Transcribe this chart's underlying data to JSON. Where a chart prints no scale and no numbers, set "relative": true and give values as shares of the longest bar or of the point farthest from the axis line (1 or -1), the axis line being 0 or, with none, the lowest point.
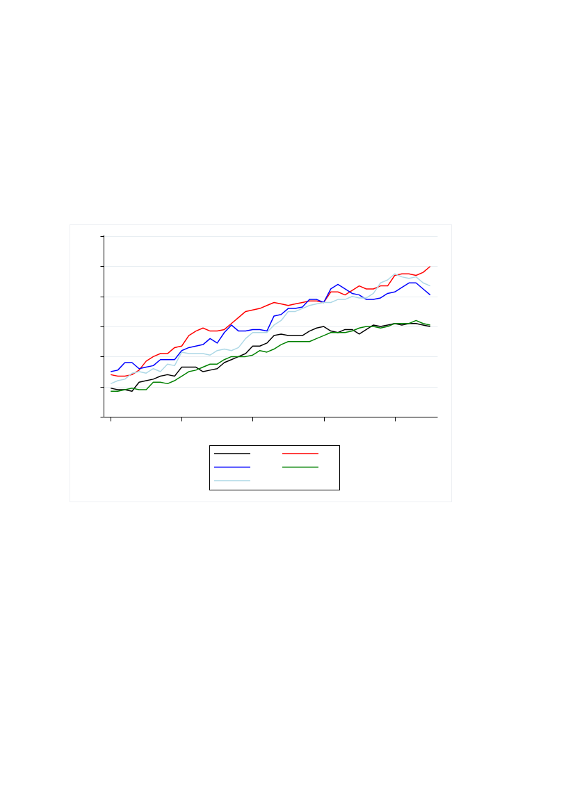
{
  "chart_data": {
    "type": "line",
    "relative": true,
    "categories": [
      null,
      null,
      null,
      null,
      null,
      null,
      null,
      null,
      null,
      null,
      null,
      null,
      null,
      null,
      null,
      null,
      null,
      null,
      null,
      null,
      null,
      null,
      null,
      null,
      null,
      null,
      null,
      null,
      null,
      null,
      null,
      null,
      null,
      null,
      null,
      null,
      null,
      null,
      null,
      null,
      null,
      null,
      null,
      null,
      null,
      null
    ],
    "series": [
      {
        "color": "#000000",
        "values": [
          0.19,
          0.18,
          0.18,
          0.17,
          0.23,
          0.24,
          0.25,
          0.27,
          0.28,
          0.27,
          0.33,
          0.33,
          0.33,
          0.3,
          0.31,
          0.32,
          0.36,
          0.38,
          0.4,
          0.42,
          0.47,
          0.47,
          0.49,
          0.54,
          0.55,
          0.54,
          0.54,
          0.54,
          0.57,
          0.59,
          0.6,
          0.57,
          0.56,
          0.58,
          0.58,
          0.55,
          0.58,
          0.61,
          0.6,
          0.61,
          0.62,
          0.61,
          0.62,
          0.62,
          0.61,
          0.6
        ]
      },
      {
        "color": "#ff0000",
        "values": [
          0.28,
          0.27,
          0.27,
          0.28,
          0.31,
          0.37,
          0.4,
          0.42,
          0.42,
          0.46,
          0.47,
          0.54,
          0.57,
          0.59,
          0.57,
          0.57,
          0.58,
          0.62,
          0.66,
          0.7,
          0.71,
          0.72,
          0.74,
          0.76,
          0.75,
          0.74,
          0.75,
          0.76,
          0.77,
          0.77,
          0.76,
          0.83,
          0.83,
          0.81,
          0.84,
          0.87,
          0.85,
          0.85,
          0.87,
          0.87,
          0.94,
          0.95,
          0.95,
          0.94,
          0.96,
          1
        ]
      },
      {
        "color": "#0000ff",
        "values": [
          0.3,
          0.31,
          0.36,
          0.36,
          0.32,
          0.33,
          0.34,
          0.38,
          0.38,
          0.38,
          0.44,
          0.46,
          0.47,
          0.48,
          0.52,
          0.49,
          0.56,
          0.61,
          0.57,
          0.57,
          0.58,
          0.58,
          0.57,
          0.67,
          0.68,
          0.72,
          0.72,
          0.73,
          0.78,
          0.78,
          0.76,
          0.85,
          0.88,
          0.85,
          0.82,
          0.81,
          0.78,
          0.78,
          0.79,
          0.82,
          0.83,
          0.86,
          0.89,
          0.89,
          0.85,
          0.81
        ]
      },
      {
        "color": "#008000",
        "values": [
          0.17,
          0.17,
          0.18,
          0.19,
          0.18,
          0.18,
          0.23,
          0.23,
          0.22,
          0.24,
          0.27,
          0.3,
          0.31,
          0.33,
          0.35,
          0.35,
          0.38,
          0.4,
          0.4,
          0.4,
          0.41,
          0.44,
          0.43,
          0.45,
          0.48,
          0.5,
          0.5,
          0.5,
          0.5,
          0.52,
          0.54,
          0.56,
          0.56,
          0.56,
          0.57,
          0.59,
          0.6,
          0.6,
          0.59,
          0.6,
          0.62,
          0.62,
          0.62,
          0.64,
          0.62,
          0.61
        ]
      },
      {
        "color": "#add8e6",
        "values": [
          0.22,
          0.24,
          0.25,
          0.29,
          0.3,
          0.29,
          0.32,
          0.3,
          0.35,
          0.34,
          0.43,
          0.42,
          0.42,
          0.42,
          0.41,
          0.44,
          0.45,
          0.44,
          0.46,
          0.52,
          0.56,
          0.56,
          0.56,
          0.61,
          0.64,
          0.7,
          0.7,
          0.72,
          0.74,
          0.75,
          0.76,
          0.76,
          0.78,
          0.78,
          0.8,
          0.79,
          0.79,
          0.82,
          0.89,
          0.91,
          0.95,
          0.93,
          0.92,
          0.93,
          0.89,
          0.87
        ]
      }
    ],
    "grid": "y"
  }
}
